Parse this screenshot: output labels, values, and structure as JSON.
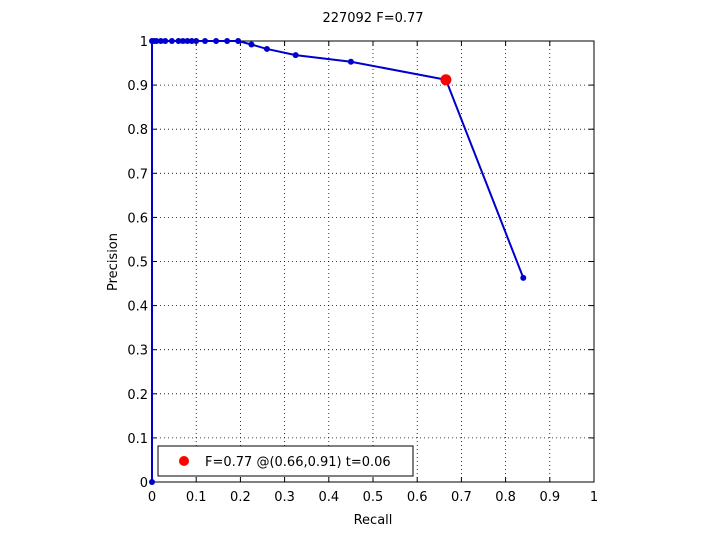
{
  "chart_data": {
    "type": "line",
    "title": "227092 F=0.77",
    "xlabel": "Recall",
    "ylabel": "Precision",
    "xlim": [
      0,
      1
    ],
    "ylim": [
      0,
      1
    ],
    "x_ticks": [
      "0",
      "0.1",
      "0.2",
      "0.3",
      "0.4",
      "0.5",
      "0.6",
      "0.7",
      "0.8",
      "0.9",
      "1"
    ],
    "y_ticks": [
      "0",
      "0.1",
      "0.2",
      "0.3",
      "0.4",
      "0.5",
      "0.6",
      "0.7",
      "0.8",
      "0.9",
      "1"
    ],
    "grid": true,
    "legend_position": "bottom-left",
    "series": [
      {
        "color": "#0000cc",
        "x": [
          0.0,
          0.0,
          0.005,
          0.01,
          0.02,
          0.03,
          0.045,
          0.06,
          0.07,
          0.08,
          0.09,
          0.1,
          0.12,
          0.145,
          0.17,
          0.195,
          0.225,
          0.26,
          0.325,
          0.45,
          0.665,
          0.84
        ],
        "y": [
          0.0,
          1.0,
          1.0,
          1.0,
          1.0,
          1.0,
          1.0,
          1.0,
          1.0,
          1.0,
          1.0,
          1.0,
          1.0,
          1.0,
          1.0,
          1.0,
          0.992,
          0.982,
          0.968,
          0.953,
          0.912,
          0.463
        ]
      }
    ],
    "highlight": {
      "x": 0.665,
      "y": 0.912,
      "color": "#ff0000",
      "label": "F=0.77 @(0.66,0.91) t=0.06"
    }
  }
}
